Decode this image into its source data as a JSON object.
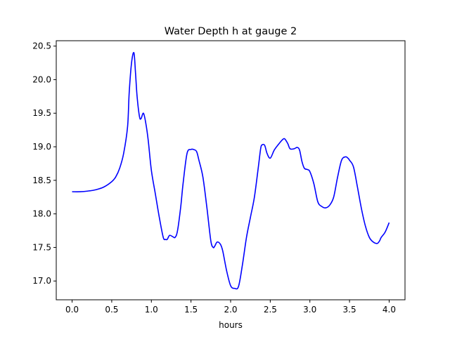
{
  "chart_data": {
    "type": "line",
    "title": "Water Depth h at gauge 2",
    "xlabel": "hours",
    "ylabel": "",
    "xlim": [
      -0.2,
      4.2
    ],
    "ylim": [
      16.72,
      20.58
    ],
    "xticks": [
      0.0,
      0.5,
      1.0,
      1.5,
      2.0,
      2.5,
      3.0,
      3.5,
      4.0
    ],
    "xtick_labels": [
      "0.0",
      "0.5",
      "1.0",
      "1.5",
      "2.0",
      "2.5",
      "3.0",
      "3.5",
      "4.0"
    ],
    "yticks": [
      17.0,
      17.5,
      18.0,
      18.5,
      19.0,
      19.5,
      20.0,
      20.5
    ],
    "ytick_labels": [
      "17.0",
      "17.5",
      "18.0",
      "18.5",
      "19.0",
      "19.5",
      "20.0",
      "20.5"
    ],
    "grid": false,
    "series": [
      {
        "name": "",
        "color": "#0000ff",
        "x": [
          0.0,
          0.1,
          0.2,
          0.3,
          0.4,
          0.5,
          0.55,
          0.6,
          0.65,
          0.7,
          0.72,
          0.75,
          0.78,
          0.8,
          0.82,
          0.85,
          0.87,
          0.9,
          0.93,
          0.96,
          1.0,
          1.05,
          1.1,
          1.15,
          1.18,
          1.2,
          1.23,
          1.27,
          1.3,
          1.33,
          1.37,
          1.4,
          1.45,
          1.5,
          1.53,
          1.57,
          1.6,
          1.65,
          1.7,
          1.75,
          1.78,
          1.8,
          1.83,
          1.87,
          1.9,
          1.95,
          2.0,
          2.05,
          2.1,
          2.15,
          2.2,
          2.25,
          2.3,
          2.35,
          2.38,
          2.4,
          2.43,
          2.46,
          2.5,
          2.55,
          2.6,
          2.65,
          2.68,
          2.72,
          2.75,
          2.8,
          2.84,
          2.87,
          2.9,
          2.93,
          2.97,
          3.0,
          3.05,
          3.1,
          3.15,
          3.2,
          3.25,
          3.3,
          3.35,
          3.4,
          3.45,
          3.48,
          3.5,
          3.55,
          3.6,
          3.65,
          3.7,
          3.75,
          3.8,
          3.85,
          3.88,
          3.9,
          3.95,
          4.0
        ],
        "y": [
          18.33,
          18.33,
          18.34,
          18.36,
          18.4,
          18.48,
          18.55,
          18.68,
          18.9,
          19.3,
          19.8,
          20.25,
          20.4,
          20.1,
          19.75,
          19.45,
          19.42,
          19.5,
          19.35,
          19.1,
          18.65,
          18.3,
          17.95,
          17.65,
          17.62,
          17.62,
          17.68,
          17.66,
          17.65,
          17.75,
          18.1,
          18.45,
          18.9,
          18.96,
          18.96,
          18.93,
          18.8,
          18.55,
          18.1,
          17.6,
          17.5,
          17.52,
          17.58,
          17.55,
          17.45,
          17.15,
          16.93,
          16.89,
          16.92,
          17.25,
          17.65,
          17.95,
          18.25,
          18.7,
          18.98,
          19.03,
          19.02,
          18.9,
          18.83,
          18.95,
          19.03,
          19.1,
          19.12,
          19.05,
          18.97,
          18.97,
          18.99,
          18.95,
          18.78,
          18.68,
          18.66,
          18.63,
          18.45,
          18.18,
          18.11,
          18.09,
          18.13,
          18.25,
          18.55,
          18.8,
          18.85,
          18.83,
          18.8,
          18.7,
          18.4,
          18.08,
          17.82,
          17.65,
          17.58,
          17.56,
          17.6,
          17.65,
          17.73,
          17.87
        ]
      }
    ]
  }
}
